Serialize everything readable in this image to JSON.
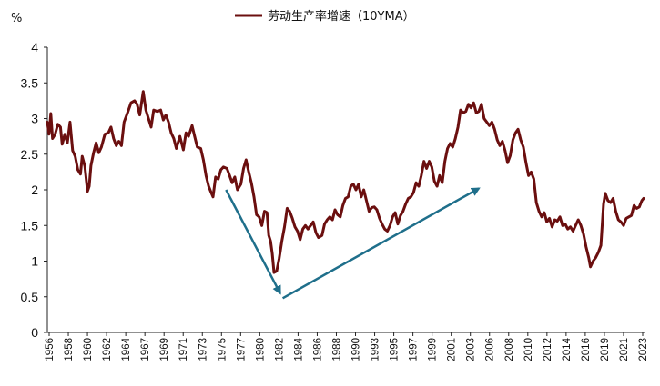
{
  "chart_data": {
    "type": "line",
    "title": "",
    "unit_label": "%",
    "xlabel": "",
    "ylabel": "%",
    "ylim": [
      0,
      4
    ],
    "yticks": [
      "0",
      "0.5",
      "1",
      "1.5",
      "2",
      "2.5",
      "3",
      "3.5",
      "4"
    ],
    "xlim": [
      1956,
      2024.5
    ],
    "xticks": [
      "1956",
      "1958",
      "1960",
      "1962",
      "1964",
      "1967",
      "1969",
      "1971",
      "1973",
      "1975",
      "1977",
      "1980",
      "1982",
      "1984",
      "1986",
      "1988",
      "1990",
      "1993",
      "1995",
      "1997",
      "1999",
      "2001",
      "2003",
      "2006",
      "2008",
      "2010",
      "2012",
      "2014",
      "2016",
      "2019",
      "2021",
      "2023"
    ],
    "legend": {
      "position": "top-center"
    },
    "grid": false,
    "series": [
      {
        "name": "劳动生产率增速（10YMA）",
        "color": "#6b0f0f",
        "points": [
          [
            1956.0,
            2.95
          ],
          [
            1956.2,
            2.78
          ],
          [
            1956.4,
            3.07
          ],
          [
            1956.6,
            2.72
          ],
          [
            1956.9,
            2.78
          ],
          [
            1957.2,
            2.92
          ],
          [
            1957.5,
            2.88
          ],
          [
            1957.7,
            2.64
          ],
          [
            1958.0,
            2.78
          ],
          [
            1958.3,
            2.66
          ],
          [
            1958.6,
            2.95
          ],
          [
            1958.9,
            2.55
          ],
          [
            1959.2,
            2.47
          ],
          [
            1959.5,
            2.28
          ],
          [
            1959.8,
            2.22
          ],
          [
            1960.0,
            2.47
          ],
          [
            1960.3,
            2.33
          ],
          [
            1960.6,
            1.98
          ],
          [
            1960.8,
            2.05
          ],
          [
            1961.0,
            2.34
          ],
          [
            1961.3,
            2.52
          ],
          [
            1961.6,
            2.66
          ],
          [
            1961.9,
            2.52
          ],
          [
            1962.2,
            2.6
          ],
          [
            1962.6,
            2.78
          ],
          [
            1963.0,
            2.8
          ],
          [
            1963.3,
            2.88
          ],
          [
            1963.6,
            2.72
          ],
          [
            1963.9,
            2.62
          ],
          [
            1964.2,
            2.68
          ],
          [
            1964.5,
            2.62
          ],
          [
            1964.8,
            2.95
          ],
          [
            1965.2,
            3.08
          ],
          [
            1965.6,
            3.22
          ],
          [
            1966.0,
            3.25
          ],
          [
            1966.3,
            3.2
          ],
          [
            1966.6,
            3.05
          ],
          [
            1967.0,
            3.38
          ],
          [
            1967.3,
            3.12
          ],
          [
            1967.6,
            3.0
          ],
          [
            1967.9,
            2.88
          ],
          [
            1968.2,
            3.12
          ],
          [
            1968.6,
            3.1
          ],
          [
            1969.0,
            3.12
          ],
          [
            1969.3,
            2.98
          ],
          [
            1969.6,
            3.05
          ],
          [
            1969.9,
            2.95
          ],
          [
            1970.2,
            2.8
          ],
          [
            1970.5,
            2.72
          ],
          [
            1970.8,
            2.58
          ],
          [
            1971.2,
            2.75
          ],
          [
            1971.6,
            2.56
          ],
          [
            1971.9,
            2.8
          ],
          [
            1972.2,
            2.75
          ],
          [
            1972.6,
            2.9
          ],
          [
            1972.9,
            2.75
          ],
          [
            1973.2,
            2.6
          ],
          [
            1973.6,
            2.58
          ],
          [
            1973.9,
            2.42
          ],
          [
            1974.2,
            2.2
          ],
          [
            1974.5,
            2.05
          ],
          [
            1974.8,
            1.96
          ],
          [
            1975.0,
            1.9
          ],
          [
            1975.3,
            2.18
          ],
          [
            1975.6,
            2.15
          ],
          [
            1975.9,
            2.28
          ],
          [
            1976.2,
            2.32
          ],
          [
            1976.6,
            2.3
          ],
          [
            1976.9,
            2.2
          ],
          [
            1977.2,
            2.1
          ],
          [
            1977.5,
            2.18
          ],
          [
            1977.8,
            2.0
          ],
          [
            1978.2,
            2.08
          ],
          [
            1978.5,
            2.3
          ],
          [
            1978.8,
            2.42
          ],
          [
            1979.1,
            2.25
          ],
          [
            1979.4,
            2.1
          ],
          [
            1979.7,
            1.9
          ],
          [
            1980.0,
            1.65
          ],
          [
            1980.3,
            1.62
          ],
          [
            1980.6,
            1.5
          ],
          [
            1980.9,
            1.7
          ],
          [
            1981.2,
            1.68
          ],
          [
            1981.4,
            1.36
          ],
          [
            1981.6,
            1.28
          ],
          [
            1981.8,
            1.1
          ],
          [
            1982.0,
            0.84
          ],
          [
            1982.3,
            0.86
          ],
          [
            1982.6,
            1.04
          ],
          [
            1982.9,
            1.28
          ],
          [
            1983.2,
            1.48
          ],
          [
            1983.5,
            1.74
          ],
          [
            1983.8,
            1.7
          ],
          [
            1984.1,
            1.6
          ],
          [
            1984.4,
            1.48
          ],
          [
            1984.7,
            1.42
          ],
          [
            1985.0,
            1.3
          ],
          [
            1985.3,
            1.45
          ],
          [
            1985.6,
            1.5
          ],
          [
            1985.9,
            1.45
          ],
          [
            1986.2,
            1.5
          ],
          [
            1986.5,
            1.55
          ],
          [
            1986.8,
            1.4
          ],
          [
            1987.1,
            1.33
          ],
          [
            1987.5,
            1.36
          ],
          [
            1987.8,
            1.52
          ],
          [
            1988.1,
            1.58
          ],
          [
            1988.4,
            1.62
          ],
          [
            1988.7,
            1.58
          ],
          [
            1989.0,
            1.72
          ],
          [
            1989.3,
            1.65
          ],
          [
            1989.6,
            1.62
          ],
          [
            1989.9,
            1.78
          ],
          [
            1990.2,
            1.88
          ],
          [
            1990.5,
            1.9
          ],
          [
            1990.8,
            2.05
          ],
          [
            1991.1,
            2.08
          ],
          [
            1991.4,
            2.0
          ],
          [
            1991.7,
            2.08
          ],
          [
            1992.0,
            1.9
          ],
          [
            1992.3,
            2.0
          ],
          [
            1992.6,
            1.85
          ],
          [
            1992.9,
            1.7
          ],
          [
            1993.2,
            1.75
          ],
          [
            1993.5,
            1.76
          ],
          [
            1993.8,
            1.72
          ],
          [
            1994.1,
            1.6
          ],
          [
            1994.4,
            1.52
          ],
          [
            1994.7,
            1.45
          ],
          [
            1995.0,
            1.42
          ],
          [
            1995.3,
            1.5
          ],
          [
            1995.6,
            1.62
          ],
          [
            1995.9,
            1.68
          ],
          [
            1996.2,
            1.52
          ],
          [
            1996.5,
            1.64
          ],
          [
            1996.8,
            1.7
          ],
          [
            1997.1,
            1.8
          ],
          [
            1997.4,
            1.88
          ],
          [
            1997.7,
            1.9
          ],
          [
            1998.0,
            1.96
          ],
          [
            1998.3,
            2.1
          ],
          [
            1998.6,
            2.05
          ],
          [
            1998.9,
            2.2
          ],
          [
            1999.2,
            2.4
          ],
          [
            1999.5,
            2.3
          ],
          [
            1999.8,
            2.4
          ],
          [
            2000.1,
            2.32
          ],
          [
            2000.4,
            2.12
          ],
          [
            2000.7,
            2.05
          ],
          [
            2001.0,
            2.2
          ],
          [
            2001.3,
            2.1
          ],
          [
            2001.6,
            2.4
          ],
          [
            2001.9,
            2.58
          ],
          [
            2002.2,
            2.65
          ],
          [
            2002.5,
            2.6
          ],
          [
            2002.8,
            2.72
          ],
          [
            2003.1,
            2.88
          ],
          [
            2003.4,
            3.12
          ],
          [
            2003.7,
            3.08
          ],
          [
            2004.0,
            3.1
          ],
          [
            2004.3,
            3.2
          ],
          [
            2004.6,
            3.15
          ],
          [
            2004.9,
            3.22
          ],
          [
            2005.2,
            3.08
          ],
          [
            2005.5,
            3.1
          ],
          [
            2005.8,
            3.2
          ],
          [
            2006.1,
            3.0
          ],
          [
            2006.4,
            2.95
          ],
          [
            2006.7,
            2.9
          ],
          [
            2007.0,
            2.95
          ],
          [
            2007.3,
            2.85
          ],
          [
            2007.6,
            2.7
          ],
          [
            2007.9,
            2.62
          ],
          [
            2008.2,
            2.68
          ],
          [
            2008.5,
            2.55
          ],
          [
            2008.8,
            2.38
          ],
          [
            2009.1,
            2.48
          ],
          [
            2009.4,
            2.7
          ],
          [
            2009.7,
            2.8
          ],
          [
            2010.0,
            2.85
          ],
          [
            2010.3,
            2.7
          ],
          [
            2010.6,
            2.6
          ],
          [
            2010.9,
            2.38
          ],
          [
            2011.2,
            2.2
          ],
          [
            2011.5,
            2.25
          ],
          [
            2011.8,
            2.15
          ],
          [
            2012.1,
            1.82
          ],
          [
            2012.4,
            1.7
          ],
          [
            2012.7,
            1.62
          ],
          [
            2013.0,
            1.68
          ],
          [
            2013.3,
            1.55
          ],
          [
            2013.6,
            1.6
          ],
          [
            2013.9,
            1.48
          ],
          [
            2014.2,
            1.58
          ],
          [
            2014.5,
            1.56
          ],
          [
            2014.8,
            1.62
          ],
          [
            2015.1,
            1.5
          ],
          [
            2015.4,
            1.52
          ],
          [
            2015.7,
            1.45
          ],
          [
            2016.0,
            1.48
          ],
          [
            2016.3,
            1.42
          ],
          [
            2016.6,
            1.5
          ],
          [
            2016.9,
            1.58
          ],
          [
            2017.2,
            1.5
          ],
          [
            2017.5,
            1.38
          ],
          [
            2017.8,
            1.2
          ],
          [
            2018.1,
            1.05
          ],
          [
            2018.3,
            0.92
          ],
          [
            2018.6,
            1.0
          ],
          [
            2018.9,
            1.05
          ],
          [
            2019.2,
            1.12
          ],
          [
            2019.5,
            1.22
          ],
          [
            2019.8,
            1.8
          ],
          [
            2020.0,
            1.95
          ],
          [
            2020.3,
            1.85
          ],
          [
            2020.6,
            1.82
          ],
          [
            2020.9,
            1.88
          ],
          [
            2021.2,
            1.7
          ],
          [
            2021.5,
            1.58
          ],
          [
            2021.8,
            1.55
          ],
          [
            2022.1,
            1.5
          ],
          [
            2022.4,
            1.6
          ],
          [
            2022.7,
            1.62
          ],
          [
            2023.0,
            1.64
          ],
          [
            2023.3,
            1.78
          ],
          [
            2023.6,
            1.74
          ],
          [
            2023.9,
            1.76
          ],
          [
            2024.2,
            1.85
          ],
          [
            2024.4,
            1.88
          ]
        ]
      }
    ],
    "annotations": [
      {
        "type": "arrow",
        "color": "#1f6f8b",
        "from": [
          1976.5,
          2.0
        ],
        "to": [
          1982.7,
          0.55
        ]
      },
      {
        "type": "arrow",
        "color": "#1f6f8b",
        "from": [
          1983.0,
          0.48
        ],
        "to": [
          2005.5,
          2.02
        ]
      }
    ]
  }
}
